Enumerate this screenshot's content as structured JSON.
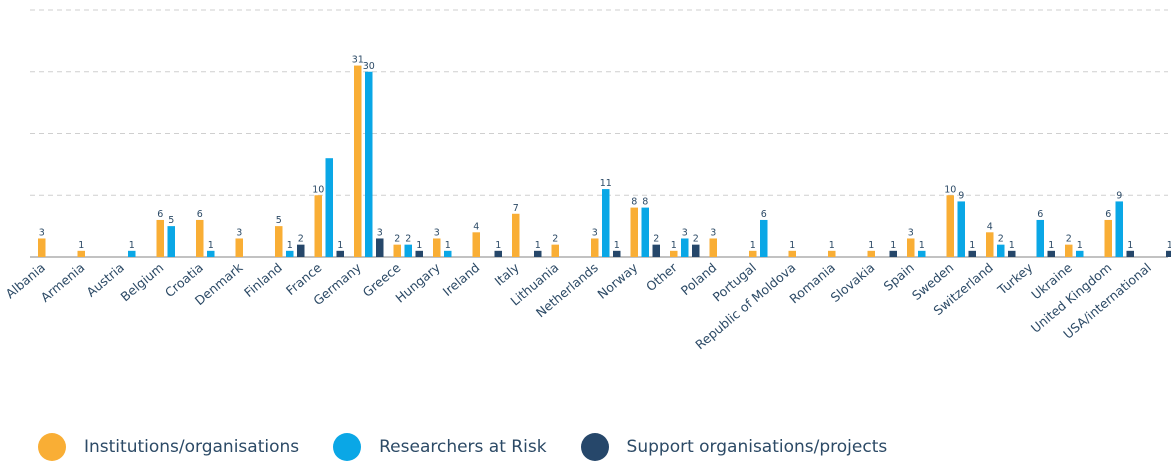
{
  "chart_data": {
    "type": "bar",
    "categories": [
      "Albania",
      "Armenia",
      "Austria",
      "Belgium",
      "Croatia",
      "Denmark",
      "Finland",
      "France",
      "Germany",
      "Greece",
      "Hungary",
      "Ireland",
      "Italy",
      "Lithuania",
      "Netherlands",
      "Norway",
      "Other",
      "Poland",
      "Portugal",
      "Republic of Moldova",
      "Romania",
      "Slovakia",
      "Spain",
      "Sweden",
      "Switzerland",
      "Turkey",
      "Ukraine",
      "United Kingdom",
      "USA/international"
    ],
    "series": [
      {
        "name": "Institutions/organisations",
        "color": "#f9ae35",
        "values": [
          3,
          1,
          null,
          6,
          6,
          3,
          5,
          10,
          31,
          2,
          3,
          4,
          7,
          2,
          3,
          8,
          1,
          3,
          1,
          1,
          1,
          1,
          3,
          10,
          4,
          null,
          2,
          6,
          null
        ]
      },
      {
        "name": "Researchers at Risk",
        "color": "#0aa7e6",
        "values": [
          null,
          null,
          1,
          5,
          1,
          null,
          1,
          16,
          30,
          2,
          1,
          null,
          null,
          null,
          11,
          8,
          3,
          null,
          6,
          null,
          null,
          null,
          1,
          9,
          2,
          6,
          1,
          9,
          null
        ]
      },
      {
        "name": "Support organisations/projects",
        "color": "#26476a",
        "values": [
          null,
          null,
          null,
          null,
          null,
          null,
          2,
          1,
          3,
          1,
          null,
          1,
          1,
          null,
          1,
          2,
          2,
          null,
          null,
          null,
          null,
          1,
          null,
          1,
          1,
          1,
          null,
          1,
          1
        ]
      }
    ],
    "data_labels": [
      [
        "3",
        "1",
        "",
        "6",
        "6",
        "3",
        "5",
        "10",
        "31",
        "2",
        "3",
        "4",
        "7",
        "2",
        "3",
        "8",
        "1",
        "3",
        "1",
        "1",
        "1",
        "1",
        "3",
        "10",
        "4",
        "",
        "2",
        "6",
        ""
      ],
      [
        "",
        "",
        "1",
        "5",
        "1",
        "",
        "1",
        "",
        "30",
        "2",
        "1",
        "",
        "",
        "",
        "11",
        "8",
        "3",
        "",
        "6",
        "",
        "",
        "",
        "1",
        "9",
        "2",
        "6",
        "1",
        "9",
        ""
      ],
      [
        "",
        "",
        "",
        "",
        "",
        "",
        "2",
        "1",
        "3",
        "1",
        "",
        "1",
        "1",
        "",
        "1",
        "2",
        "2",
        "",
        "",
        "",
        "",
        "1",
        "",
        "1",
        "1",
        "1",
        "",
        "1",
        "1"
      ]
    ],
    "ylim": [
      0,
      32
    ],
    "grid": true,
    "legend_position": "bottom"
  }
}
